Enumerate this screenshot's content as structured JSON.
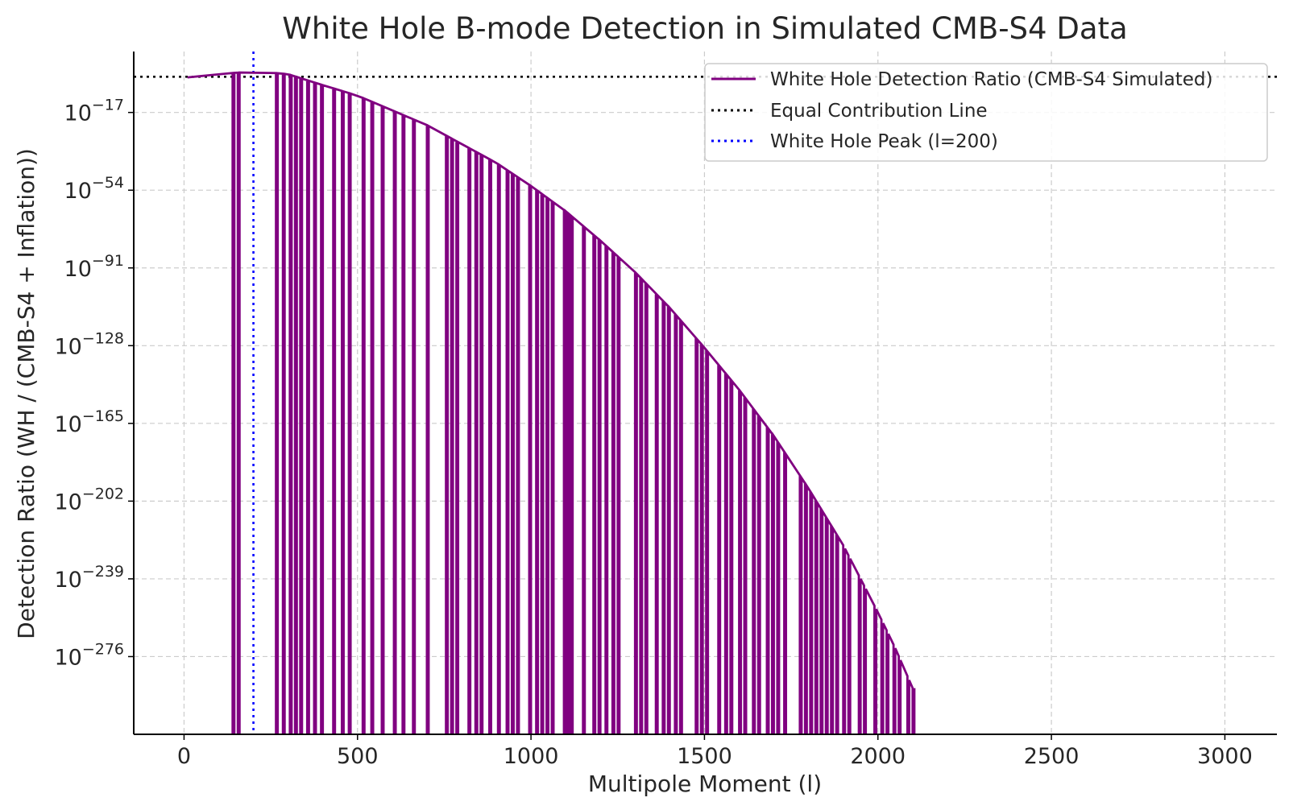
{
  "chart_data": {
    "type": "line",
    "title": "White Hole B-mode Detection in Simulated CMB-S4 Data",
    "xlabel": "Multipole Moment (l)",
    "ylabel": "Detection Ratio (WH / (CMB-S4 + Inflation))",
    "xlim": [
      -145,
      3150
    ],
    "ylim_log10": [
      -313,
      12
    ],
    "y_scale": "log",
    "grid": true,
    "legend_position": "top-right",
    "x_ticks": [
      {
        "value": 0,
        "label": "0"
      },
      {
        "value": 500,
        "label": "500"
      },
      {
        "value": 1000,
        "label": "1000"
      },
      {
        "value": 1500,
        "label": "1500"
      },
      {
        "value": 2000,
        "label": "2000"
      },
      {
        "value": 2500,
        "label": "2500"
      },
      {
        "value": 3000,
        "label": "3000"
      }
    ],
    "y_ticks": [
      {
        "exp": -17,
        "base": "10",
        "sup": "−17"
      },
      {
        "exp": -54,
        "base": "10",
        "sup": "−54"
      },
      {
        "exp": -91,
        "base": "10",
        "sup": "−91"
      },
      {
        "exp": -128,
        "base": "10",
        "sup": "−128"
      },
      {
        "exp": -165,
        "base": "10",
        "sup": "−165"
      },
      {
        "exp": -202,
        "base": "10",
        "sup": "−202"
      },
      {
        "exp": -239,
        "base": "10",
        "sup": "−239"
      },
      {
        "exp": -276,
        "base": "10",
        "sup": "−276"
      }
    ],
    "series": [
      {
        "name": "White Hole Detection Ratio (CMB-S4 Simulated)",
        "style": "solid",
        "color": "#800080",
        "envelope": {
          "l": [
            10,
            60,
            120,
            180,
            230,
            300,
            400,
            500,
            600,
            700,
            800,
            900,
            1000,
            1100,
            1200,
            1300,
            1400,
            1500,
            1600,
            1700,
            1800,
            1900,
            2000,
            2050,
            2100
          ],
          "log10_ratio": [
            -0.3,
            0.8,
            1.6,
            2.2,
            2.3,
            1.2,
            -4.0,
            -9.0,
            -16.0,
            -23.0,
            -32.0,
            -41.0,
            -52.0,
            -64.0,
            -78.0,
            -93.0,
            -110.0,
            -129.0,
            -149.0,
            -171.0,
            -196.0,
            -223.0,
            -255.0,
            -272.0,
            -291.0
          ]
        },
        "drop_l": [
          140,
          155,
          265,
          285,
          305,
          320,
          335,
          355,
          375,
          395,
          430,
          455,
          475,
          515,
          540,
          570,
          605,
          630,
          660,
          700,
          755,
          770,
          785,
          820,
          840,
          855,
          880,
          905,
          930,
          945,
          960,
          995,
          1015,
          1030,
          1045,
          1060,
          1095,
          1105,
          1115,
          1150,
          1180,
          1195,
          1215,
          1235,
          1250,
          1300,
          1315,
          1330,
          1360,
          1380,
          1395,
          1415,
          1430,
          1475,
          1490,
          1505,
          1540,
          1560,
          1575,
          1600,
          1615,
          1640,
          1655,
          1680,
          1695,
          1710,
          1730,
          1775,
          1790,
          1805,
          1820,
          1835,
          1850,
          1865,
          1880,
          1900,
          1915,
          1945,
          1960,
          1990,
          2010,
          2025,
          2045,
          2060,
          2085,
          2100
        ],
        "drop_to_log10": -325
      },
      {
        "name": "Equal Contribution Line",
        "style": "dotted",
        "color": "#000000",
        "y_log10": 0
      },
      {
        "name": "White Hole Peak (l=200)",
        "style": "dotted",
        "color": "#0000ff",
        "x": 200
      }
    ]
  }
}
